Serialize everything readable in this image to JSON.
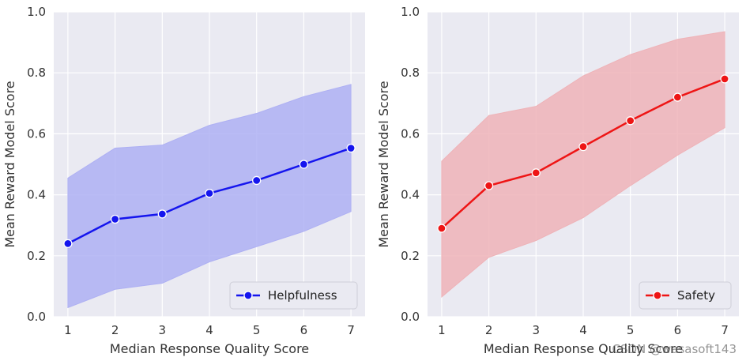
{
  "chart_data": [
    {
      "type": "line",
      "x": [
        1,
        2,
        3,
        4,
        5,
        6,
        7
      ],
      "series": [
        {
          "name": "Helpfulness",
          "values": [
            0.24,
            0.32,
            0.337,
            0.405,
            0.447,
            0.5,
            0.553
          ],
          "lower": [
            0.03,
            0.09,
            0.11,
            0.18,
            0.23,
            0.28,
            0.345
          ],
          "upper": [
            0.455,
            0.553,
            0.563,
            0.628,
            0.667,
            0.722,
            0.762
          ],
          "color": "#1515ee",
          "band_color": "#aeb0f3"
        }
      ],
      "xlabel": "Median Response Quality Score",
      "ylabel": "Mean Reward Model Score",
      "xticks": [
        "1",
        "2",
        "3",
        "4",
        "5",
        "6",
        "7"
      ],
      "yticks": [
        "0.0",
        "0.2",
        "0.4",
        "0.6",
        "0.8",
        "1.0"
      ],
      "xlim": [
        0.7,
        7.3
      ],
      "ylim": [
        0,
        1
      ],
      "grid": true,
      "legend": "bottom-right",
      "background": "#eaeaf2"
    },
    {
      "type": "line",
      "x": [
        1,
        2,
        3,
        4,
        5,
        6,
        7
      ],
      "series": [
        {
          "name": "Safety",
          "values": [
            0.29,
            0.43,
            0.472,
            0.558,
            0.643,
            0.72,
            0.78
          ],
          "lower": [
            0.065,
            0.195,
            0.25,
            0.325,
            0.43,
            0.53,
            0.62
          ],
          "upper": [
            0.51,
            0.66,
            0.69,
            0.79,
            0.86,
            0.91,
            0.935
          ],
          "color": "#ee1515",
          "band_color": "#eeb3b8"
        }
      ],
      "xlabel": "Median Response Quality Score",
      "ylabel": "Mean Reward Model Score",
      "xticks": [
        "1",
        "2",
        "3",
        "4",
        "5",
        "6",
        "7"
      ],
      "yticks": [
        "0.0",
        "0.2",
        "0.4",
        "0.6",
        "0.8",
        "1.0"
      ],
      "xlim": [
        0.7,
        7.3
      ],
      "ylim": [
        0,
        1
      ],
      "grid": true,
      "legend": "bottom-right",
      "background": "#eaeaf2"
    }
  ],
  "watermark": "CSDN @wasasoft143"
}
